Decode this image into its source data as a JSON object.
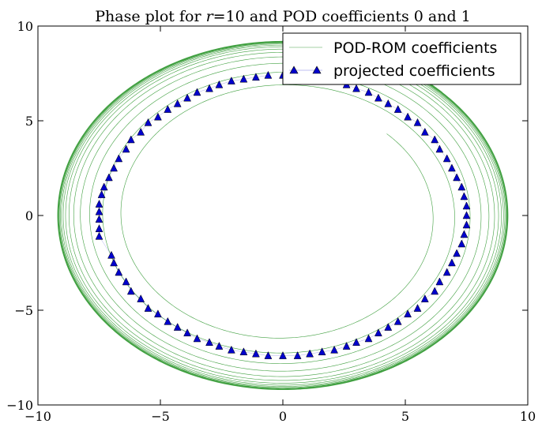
{
  "chart_data": {
    "type": "scatter",
    "title": "Phase plot for r =10 and POD coefficients 0 and 1",
    "title_parts": {
      "prefix": "Phase plot for ",
      "r_var": "r",
      "r_value": "=10",
      "middle": " and POD coefficients ",
      "coef_a": "0",
      "joiner": " and ",
      "coef_b": "1"
    },
    "xlabel": "",
    "ylabel": "",
    "xlim": [
      -10,
      10
    ],
    "ylim": [
      -10,
      10
    ],
    "x_ticks": [
      {
        "value": -10,
        "label": "−10"
      },
      {
        "value": -5,
        "label": "−5"
      },
      {
        "value": 0,
        "label": "0"
      },
      {
        "value": 5,
        "label": "5"
      },
      {
        "value": 10,
        "label": "10"
      }
    ],
    "y_ticks": [
      {
        "value": -10,
        "label": "−10"
      },
      {
        "value": -5,
        "label": "−5"
      },
      {
        "value": 0,
        "label": "0"
      },
      {
        "value": 5,
        "label": "5"
      },
      {
        "value": 10,
        "label": "10"
      }
    ],
    "grid": false,
    "legend_position": "top-right",
    "series": [
      {
        "name": "POD-ROM coefficients",
        "style": "line",
        "color": "#008000",
        "description": "spiral trajectory growing from inner orbit to limit cycle",
        "start_radius": [
          6.0,
          6.1
        ],
        "start_angle_deg": 45,
        "end_radius": [
          9.2,
          9.2
        ],
        "turns": 16,
        "growth_rate": 0.9
      },
      {
        "name": "projected coefficients",
        "style": "marker",
        "marker": "triangle-up",
        "color": "#0000cc",
        "points": [
          [
            0.0,
            7.4
          ],
          [
            0.6,
            7.4
          ],
          [
            1.1,
            7.3
          ],
          [
            1.6,
            7.2
          ],
          [
            2.1,
            7.1
          ],
          [
            2.6,
            6.9
          ],
          [
            3.0,
            6.7
          ],
          [
            3.5,
            6.5
          ],
          [
            3.9,
            6.2
          ],
          [
            4.3,
            5.9
          ],
          [
            4.7,
            5.6
          ],
          [
            5.1,
            5.2
          ],
          [
            5.5,
            4.9
          ],
          [
            5.8,
            4.4
          ],
          [
            6.2,
            4.0
          ],
          [
            6.4,
            3.5
          ],
          [
            6.7,
            3.0
          ],
          [
            6.9,
            2.5
          ],
          [
            7.1,
            2.0
          ],
          [
            7.3,
            1.5
          ],
          [
            7.4,
            1.0
          ],
          [
            7.5,
            0.5
          ],
          [
            7.5,
            0.0
          ],
          [
            7.5,
            -0.5
          ],
          [
            7.4,
            -1.0
          ],
          [
            7.3,
            -1.5
          ],
          [
            7.1,
            -2.0
          ],
          [
            6.9,
            -2.5
          ],
          [
            6.7,
            -3.0
          ],
          [
            6.4,
            -3.5
          ],
          [
            6.2,
            -4.0
          ],
          [
            5.8,
            -4.4
          ],
          [
            5.5,
            -4.9
          ],
          [
            5.1,
            -5.2
          ],
          [
            4.7,
            -5.6
          ],
          [
            4.3,
            -5.9
          ],
          [
            3.9,
            -6.2
          ],
          [
            3.5,
            -6.5
          ],
          [
            3.0,
            -6.7
          ],
          [
            2.6,
            -6.9
          ],
          [
            2.1,
            -7.1
          ],
          [
            1.6,
            -7.2
          ],
          [
            1.1,
            -7.3
          ],
          [
            0.6,
            -7.4
          ],
          [
            0.0,
            -7.4
          ],
          [
            -0.6,
            -7.4
          ],
          [
            -1.1,
            -7.3
          ],
          [
            -1.6,
            -7.2
          ],
          [
            -2.1,
            -7.1
          ],
          [
            -2.6,
            -6.9
          ],
          [
            -3.0,
            -6.7
          ],
          [
            -3.5,
            -6.5
          ],
          [
            -3.9,
            -6.2
          ],
          [
            -4.3,
            -5.9
          ],
          [
            -4.7,
            -5.6
          ],
          [
            -5.1,
            -5.2
          ],
          [
            -5.5,
            -4.9
          ],
          [
            -5.8,
            -4.4
          ],
          [
            -6.2,
            -4.0
          ],
          [
            -6.4,
            -3.5
          ],
          [
            -6.7,
            -3.0
          ],
          [
            -6.9,
            -2.5
          ],
          [
            -7.0,
            -2.1
          ],
          [
            -7.5,
            -1.1
          ],
          [
            -7.5,
            -0.7
          ],
          [
            -7.5,
            -0.2
          ],
          [
            -7.5,
            0.2
          ],
          [
            -7.5,
            0.6
          ],
          [
            -7.4,
            1.1
          ],
          [
            -7.3,
            1.5
          ],
          [
            -7.1,
            2.0
          ],
          [
            -6.9,
            2.5
          ],
          [
            -6.7,
            3.0
          ],
          [
            -6.4,
            3.5
          ],
          [
            -6.2,
            4.0
          ],
          [
            -5.8,
            4.4
          ],
          [
            -5.5,
            4.9
          ],
          [
            -5.1,
            5.2
          ],
          [
            -4.7,
            5.6
          ],
          [
            -4.3,
            5.9
          ],
          [
            -3.9,
            6.2
          ],
          [
            -3.5,
            6.5
          ],
          [
            -3.0,
            6.7
          ],
          [
            -2.6,
            6.9
          ],
          [
            -2.1,
            7.1
          ],
          [
            -1.6,
            7.2
          ],
          [
            -1.1,
            7.3
          ],
          [
            -0.6,
            7.4
          ]
        ]
      }
    ]
  }
}
